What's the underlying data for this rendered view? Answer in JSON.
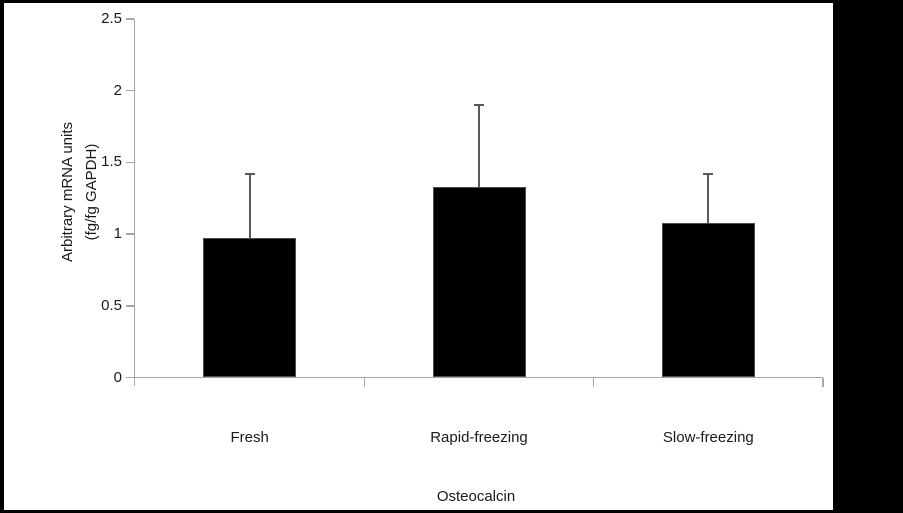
{
  "figure": {
    "background": "#ffffff",
    "frame_color": "#000000"
  },
  "chart_data": {
    "type": "bar",
    "title": "",
    "categories": [
      "Fresh",
      "Rapid-freezing",
      "Slow-freezing"
    ],
    "values": [
      0.97,
      1.33,
      1.08
    ],
    "error_plus": [
      0.45,
      0.57,
      0.34
    ],
    "error_bar_tops": [
      1.42,
      1.9,
      1.42
    ],
    "xlabel": "Osteocalcin",
    "ylabel": "Arbitrary mRNA units (fg/fg GAPDH)",
    "ylabel_lines": [
      "Arbitrary mRNA units",
      "(fg/fg GAPDH)"
    ],
    "ylim": [
      0,
      2.5
    ],
    "ytick_step": 0.5,
    "ytick_labels": [
      "0",
      "0.5",
      "1",
      "1.5",
      "2",
      "2.5"
    ],
    "grid": false,
    "legend_position": "none",
    "colors": {
      "bar_fill": "#000000",
      "bar_border": "#4d4d4d",
      "axis": "#a6a6a6",
      "error_bar": "#595959",
      "text": "#1a1a1a"
    }
  }
}
